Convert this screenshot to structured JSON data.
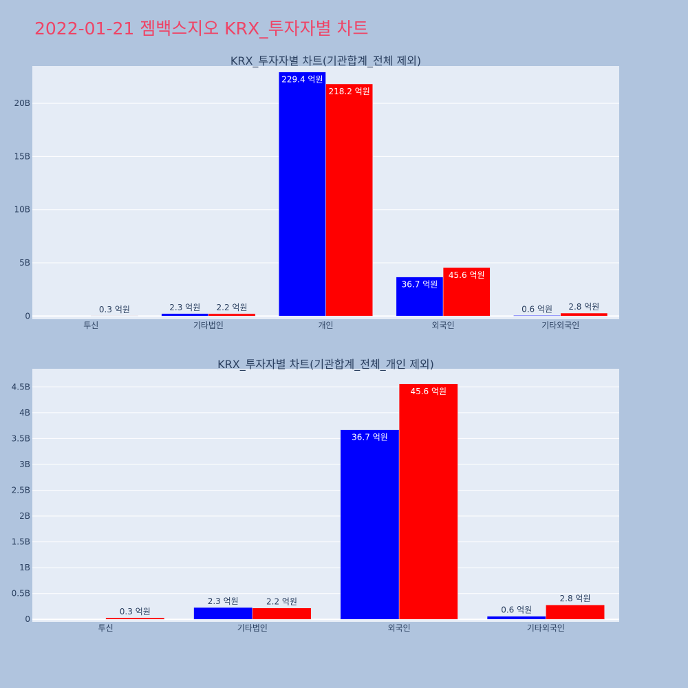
{
  "page": {
    "title": "2022-01-21 젬백스지오 KRX_투자자별 차트"
  },
  "colors": {
    "background": "#b0c4de",
    "plot_bg": "#e5ecf6",
    "title": "#ee4466",
    "buy": "#0000ff",
    "sell": "#ff0000",
    "text": "#2a3f5f",
    "grid": "#ffffff"
  },
  "chart_data": [
    {
      "type": "bar",
      "title": "KRX_투자자별 차트(기관합계_전체 제외)",
      "categories": [
        "투신",
        "기타법인",
        "개인",
        "외국인",
        "기타외국인"
      ],
      "series": [
        {
          "color": "#0000ff",
          "values": [
            0,
            230000000,
            22940000000,
            3670000000,
            60000000
          ],
          "labels": [
            "",
            "2.3 억원",
            "229.4 억원",
            "36.7 억원",
            "0.6 억원"
          ]
        },
        {
          "color": "#ff0000",
          "values": [
            30000000,
            220000000,
            21820000000,
            4560000000,
            280000000
          ],
          "labels": [
            "0.3 억원",
            "2.2 억원",
            "218.2 억원",
            "45.6 억원",
            "2.8 억원"
          ]
        }
      ],
      "yticks": [
        0,
        5000000000,
        10000000000,
        15000000000,
        20000000000
      ],
      "ytick_labels": [
        "0",
        "5B",
        "10B",
        "15B",
        "20B"
      ],
      "ylim": [
        -300000000,
        23500000000
      ],
      "grid": true,
      "xlabel": "",
      "ylabel": ""
    },
    {
      "type": "bar",
      "title": "KRX_투자자별 차트(기관합계_전체_개인 제외)",
      "categories": [
        "투신",
        "기타법인",
        "외국인",
        "기타외국인"
      ],
      "series": [
        {
          "color": "#0000ff",
          "values": [
            0,
            230000000,
            3670000000,
            60000000
          ],
          "labels": [
            "",
            "2.3 억원",
            "36.7 억원",
            "0.6 억원"
          ]
        },
        {
          "color": "#ff0000",
          "values": [
            30000000,
            220000000,
            4560000000,
            280000000
          ],
          "labels": [
            "0.3 억원",
            "2.2 억원",
            "45.6 억원",
            "2.8 억원"
          ]
        }
      ],
      "yticks": [
        0,
        500000000,
        1000000000,
        1500000000,
        2000000000,
        2500000000,
        3000000000,
        3500000000,
        4000000000,
        4500000000
      ],
      "ytick_labels": [
        "0",
        "0.5B",
        "1B",
        "1.5B",
        "2B",
        "2.5B",
        "3B",
        "3.5B",
        "4B",
        "4.5B"
      ],
      "ylim": [
        -50000000,
        4850000000
      ],
      "grid": true,
      "xlabel": "",
      "ylabel": ""
    }
  ]
}
